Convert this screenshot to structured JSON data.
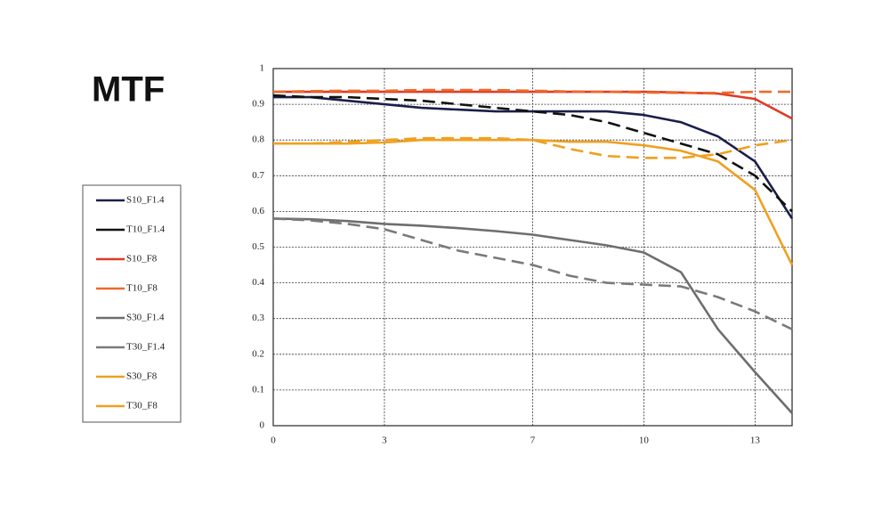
{
  "chart_data": {
    "type": "line",
    "title": "MTF",
    "x": [
      0,
      1,
      2,
      3,
      4,
      5,
      6,
      7,
      8,
      9,
      10,
      11,
      12,
      13,
      14
    ],
    "xlim": [
      0,
      14
    ],
    "xticks": [
      0,
      3,
      7,
      10,
      13
    ],
    "ylim": [
      0,
      1
    ],
    "yticks": [
      0,
      0.1,
      0.2,
      0.3,
      0.4,
      0.5,
      0.6,
      0.7,
      0.8,
      0.9,
      1
    ],
    "grid": true,
    "legend": "left",
    "series": [
      {
        "name": "S10_F1.4",
        "color": "#1a1f4a",
        "line_style": "solid",
        "values": [
          0.92,
          0.92,
          0.91,
          0.9,
          0.89,
          0.885,
          0.88,
          0.88,
          0.88,
          0.88,
          0.87,
          0.85,
          0.81,
          0.74,
          0.58
        ]
      },
      {
        "name": "T10_F1.4",
        "color": "#111111",
        "line_style": "dashed",
        "values": [
          0.925,
          0.92,
          0.92,
          0.915,
          0.91,
          0.9,
          0.89,
          0.88,
          0.87,
          0.85,
          0.82,
          0.79,
          0.76,
          0.7,
          0.6
        ]
      },
      {
        "name": "S10_F8",
        "color": "#e03a24",
        "line_style": "solid",
        "values": [
          0.935,
          0.935,
          0.935,
          0.935,
          0.935,
          0.935,
          0.935,
          0.935,
          0.935,
          0.935,
          0.935,
          0.933,
          0.93,
          0.915,
          0.86
        ]
      },
      {
        "name": "T10_F8",
        "color": "#ee6a2a",
        "line_style": "dashed",
        "values": [
          0.935,
          0.937,
          0.938,
          0.938,
          0.94,
          0.94,
          0.94,
          0.938,
          0.936,
          0.935,
          0.933,
          0.932,
          0.932,
          0.935,
          0.935
        ]
      },
      {
        "name": "S30_F1.4",
        "color": "#6e6e6e",
        "line_style": "solid",
        "values": [
          0.58,
          0.578,
          0.573,
          0.565,
          0.56,
          0.553,
          0.545,
          0.535,
          0.52,
          0.505,
          0.485,
          0.43,
          0.27,
          0.15,
          0.035
        ]
      },
      {
        "name": "T30_F1.4",
        "color": "#7a7a7a",
        "line_style": "dashed",
        "values": [
          0.58,
          0.575,
          0.565,
          0.55,
          0.52,
          0.49,
          0.47,
          0.45,
          0.42,
          0.4,
          0.395,
          0.39,
          0.36,
          0.32,
          0.27
        ]
      },
      {
        "name": "S30_F8",
        "color": "#f0a020",
        "line_style": "solid",
        "values": [
          0.79,
          0.79,
          0.79,
          0.793,
          0.8,
          0.8,
          0.8,
          0.8,
          0.795,
          0.795,
          0.785,
          0.77,
          0.74,
          0.66,
          0.45
        ]
      },
      {
        "name": "T30_F8",
        "color": "#f0a020",
        "line_style": "dashed",
        "values": [
          0.79,
          0.79,
          0.795,
          0.8,
          0.805,
          0.805,
          0.805,
          0.8,
          0.775,
          0.755,
          0.75,
          0.75,
          0.76,
          0.785,
          0.8
        ]
      }
    ]
  }
}
